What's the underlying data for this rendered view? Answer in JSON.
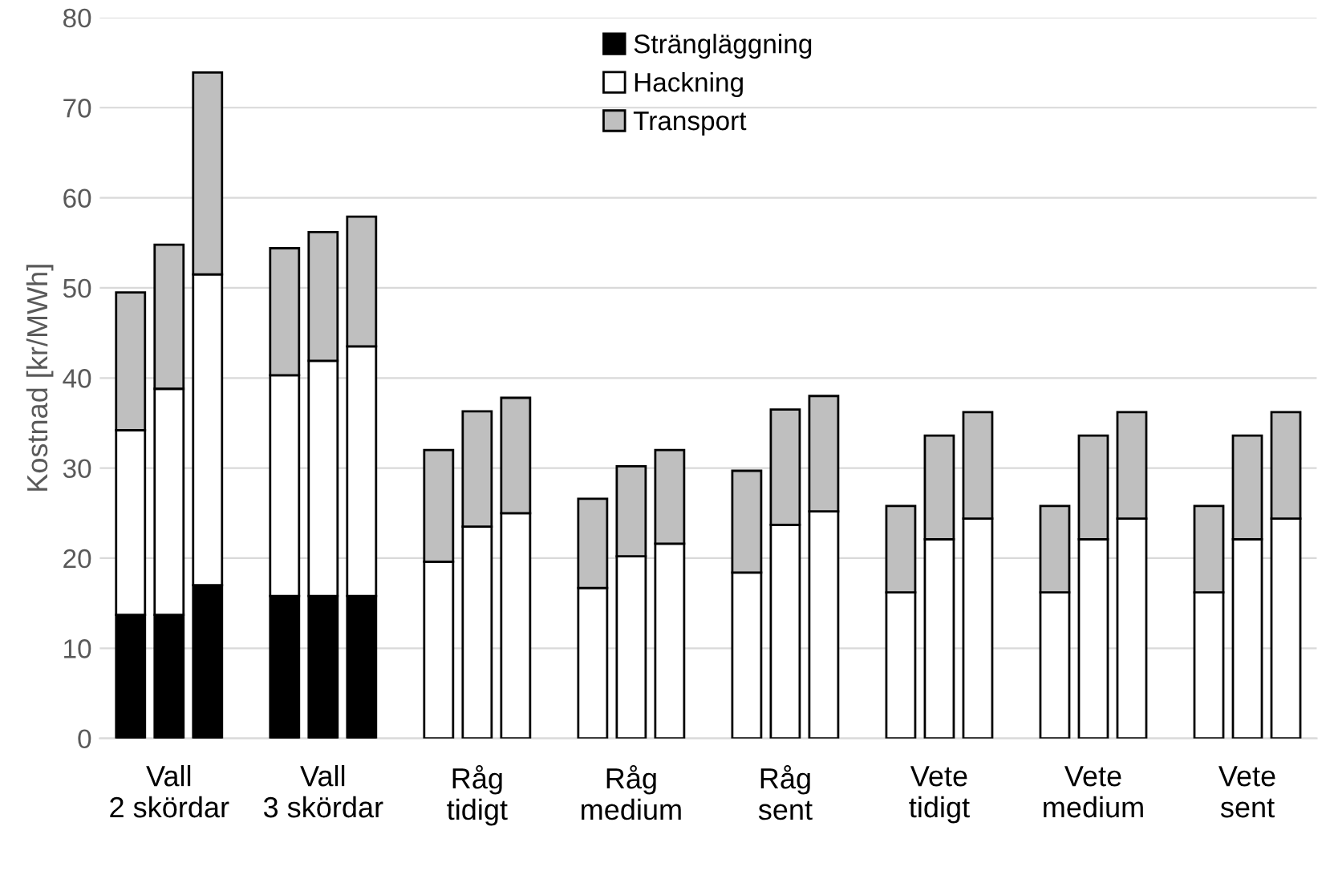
{
  "chart_data": {
    "type": "bar",
    "stacked": true,
    "ylabel": "Kostnad [kr/MWh]",
    "categories": [
      null,
      "Vall\n2 skördar",
      null,
      null,
      null,
      "Vall\n3 skördar",
      null,
      null,
      null,
      "Råg\ntidigt",
      null,
      null,
      null,
      "Råg\nmedium",
      null,
      null,
      null,
      "Råg\nsent",
      null,
      null,
      null,
      "Vete\ntidigt",
      null,
      null,
      null,
      "Vete\nmedium",
      null,
      null,
      null,
      "Vete\nsent",
      null
    ],
    "series": [
      {
        "name": "Strängläggning",
        "color": "#000000",
        "values": [
          13.7,
          13.7,
          17,
          null,
          15.8,
          15.8,
          15.8,
          null,
          null,
          null,
          null,
          null,
          null,
          null,
          null,
          null,
          null,
          null,
          null,
          null,
          null,
          null,
          null,
          null,
          null,
          null,
          null,
          null,
          null,
          null,
          null
        ]
      },
      {
        "name": "Hackning",
        "color": "#ffffff",
        "values": [
          20.5,
          25.1,
          34.5,
          null,
          24.5,
          26.1,
          27.7,
          null,
          19.6,
          23.5,
          25,
          null,
          16.7,
          20.2,
          21.6,
          null,
          18.4,
          23.7,
          25.2,
          null,
          16.2,
          22.1,
          24.4,
          null,
          16.2,
          22.1,
          24.4,
          null,
          16.2,
          22.1,
          24.4
        ]
      },
      {
        "name": "Transport",
        "color": "#bfbfbf",
        "values": [
          15.3,
          16.0,
          22.4,
          null,
          14.1,
          14.3,
          14.4,
          null,
          12.4,
          12.8,
          12.8,
          null,
          9.9,
          10.0,
          10.4,
          null,
          11.3,
          12.8,
          12.8,
          null,
          9.6,
          11.5,
          11.8,
          null,
          9.6,
          11.5,
          11.8,
          null,
          9.6,
          11.5,
          11.8
        ]
      }
    ],
    "ylim": [
      0,
      80
    ],
    "yticks": [
      0,
      10,
      20,
      30,
      40,
      50,
      60,
      70,
      80
    ],
    "grid": "y",
    "legend": "top"
  }
}
